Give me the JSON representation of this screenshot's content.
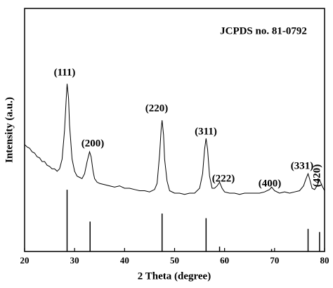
{
  "chart_data": {
    "type": "line",
    "x_label": "2 Theta (degree)",
    "y_label": "Intensity (a.u.)",
    "annotation": "JCPDS no. 81-0792",
    "peak_labels": [
      "(111)",
      "(200)",
      "(220)",
      "(311)",
      "(222)",
      "(400)",
      "(331)",
      "(420)"
    ],
    "xlim": [
      20,
      80
    ],
    "xticks": [
      20,
      30,
      40,
      50,
      60,
      70,
      80
    ],
    "ylim": [
      0,
      100
    ],
    "color": "#000000",
    "x": [
      20,
      20.5,
      21,
      21.5,
      22,
      22.5,
      23,
      23.5,
      24,
      24.5,
      25,
      25.5,
      26,
      26.5,
      27,
      27.5,
      28,
      28.3,
      28.5,
      28.8,
      29,
      29.5,
      30,
      30.5,
      31,
      31.5,
      32,
      32.5,
      33,
      33.3,
      33.7,
      34,
      34.5,
      35,
      36,
      37,
      38,
      39,
      40,
      41,
      42,
      43,
      44,
      45,
      46,
      46.5,
      47,
      47.3,
      47.5,
      47.8,
      48,
      48.5,
      49,
      50,
      51,
      52,
      53,
      54,
      55,
      55.6,
      56,
      56.3,
      56.6,
      57,
      57.5,
      58,
      58.5,
      59,
      59.5,
      60,
      61,
      62,
      63,
      64,
      65,
      66,
      67,
      68,
      69,
      69.4,
      70,
      71,
      72,
      73,
      74,
      75,
      75.8,
      76.3,
      76.7,
      77,
      77.5,
      78,
      78.5,
      79,
      79.5,
      80
    ],
    "values": [
      44,
      43,
      42.5,
      41,
      40.5,
      39,
      38.5,
      37,
      37,
      35.5,
      35,
      34,
      34,
      33,
      34,
      38,
      50,
      62,
      69,
      63,
      52,
      38,
      33,
      31,
      30.5,
      30,
      32,
      37,
      41,
      39,
      33,
      30,
      28.5,
      28,
      27.5,
      27,
      26.5,
      27,
      26,
      26,
      25.5,
      25,
      25,
      24.5,
      25.5,
      28,
      40,
      50,
      54,
      48,
      38,
      29,
      25,
      24,
      24,
      23.5,
      24,
      24,
      26,
      32,
      42,
      46.5,
      42,
      31,
      26,
      26,
      27,
      28.5,
      26,
      24.5,
      24,
      24,
      23.5,
      24,
      24,
      24,
      24,
      24.5,
      25.5,
      26.5,
      25,
      24,
      24.5,
      24,
      24.5,
      25,
      27,
      30,
      32,
      30,
      26,
      25.5,
      27,
      29.5,
      27,
      25
    ],
    "reference": {
      "x": [
        28.5,
        33.1,
        47.5,
        56.3,
        59.0,
        69.4,
        76.7,
        79.0
      ],
      "values": [
        25.4,
        12.3,
        15.6,
        13.7,
        2,
        1,
        9.3,
        8
      ]
    }
  }
}
